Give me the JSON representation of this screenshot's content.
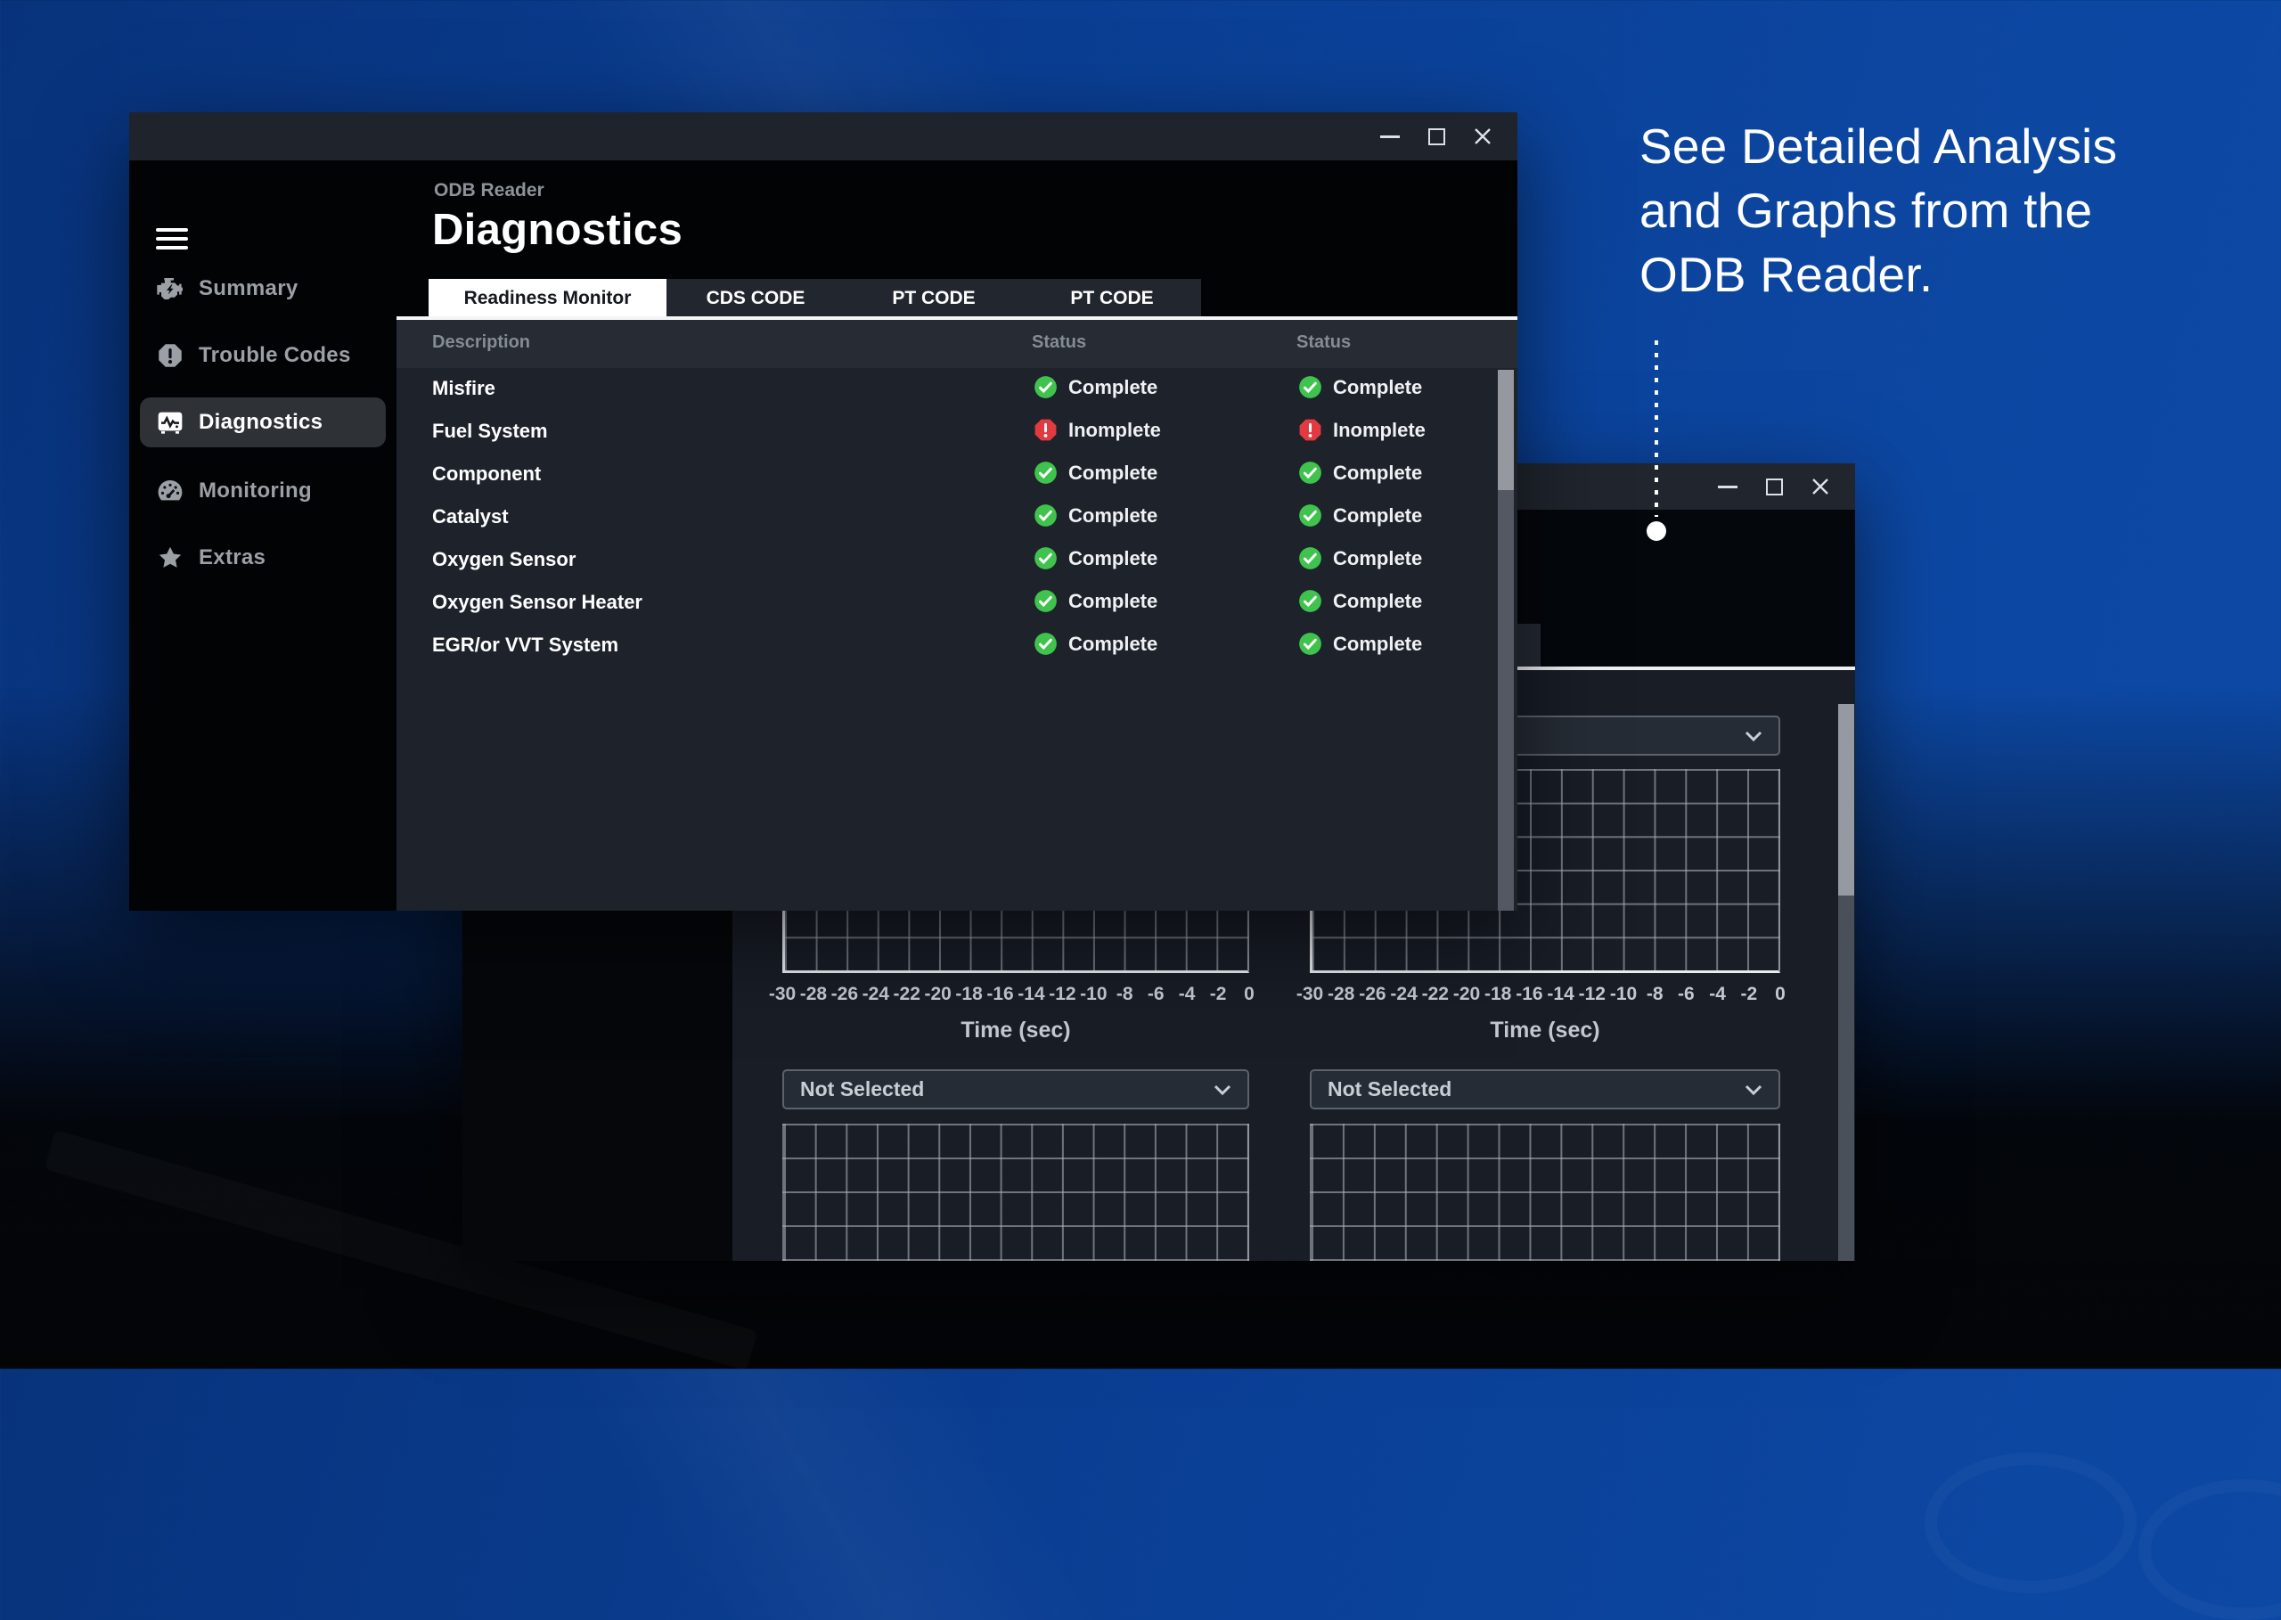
{
  "caption": {
    "text": "See Detailed Analysis\nand Graphs from the\nODB Reader."
  },
  "main_window": {
    "subtitle": "ODB Reader",
    "title": "Diagnostics",
    "window_controls": [
      "minimize",
      "maximize",
      "close"
    ],
    "sidebar": {
      "items": [
        {
          "label": "Summary",
          "icon": "engine-icon",
          "active": false
        },
        {
          "label": "Trouble Codes",
          "icon": "alert-octagon-icon",
          "active": false
        },
        {
          "label": "Diagnostics",
          "icon": "waveform-monitor-icon",
          "active": true
        },
        {
          "label": "Monitoring",
          "icon": "gauge-icon",
          "active": false
        },
        {
          "label": "Extras",
          "icon": "star-icon",
          "active": false
        }
      ]
    },
    "tabs": [
      {
        "label": "Readiness Monitor",
        "active": true
      },
      {
        "label": "CDS CODE",
        "active": false
      },
      {
        "label": "PT CODE",
        "active": false
      },
      {
        "label": "PT CODE",
        "active": false
      }
    ],
    "table": {
      "columns": [
        "Description",
        "Status",
        "Status"
      ],
      "rows": [
        {
          "description": "Misfire",
          "statuses": [
            {
              "label": "Complete",
              "state": "complete"
            },
            {
              "label": "Complete",
              "state": "complete"
            }
          ]
        },
        {
          "description": "Fuel System",
          "statuses": [
            {
              "label": "Inomplete",
              "state": "incomplete"
            },
            {
              "label": "Inomplete",
              "state": "incomplete"
            }
          ]
        },
        {
          "description": "Component",
          "statuses": [
            {
              "label": "Complete",
              "state": "complete"
            },
            {
              "label": "Complete",
              "state": "complete"
            }
          ]
        },
        {
          "description": "Catalyst",
          "statuses": [
            {
              "label": "Complete",
              "state": "complete"
            },
            {
              "label": "Complete",
              "state": "complete"
            }
          ]
        },
        {
          "description": "Oxygen Sensor",
          "statuses": [
            {
              "label": "Complete",
              "state": "complete"
            },
            {
              "label": "Complete",
              "state": "complete"
            }
          ]
        },
        {
          "description": "Oxygen Sensor Heater",
          "statuses": [
            {
              "label": "Complete",
              "state": "complete"
            },
            {
              "label": "Complete",
              "state": "complete"
            }
          ]
        },
        {
          "description": "EGR/or VVT System",
          "statuses": [
            {
              "label": "Complete",
              "state": "complete"
            },
            {
              "label": "Complete",
              "state": "complete"
            }
          ]
        }
      ]
    }
  },
  "charts_window": {
    "window_controls": [
      "minimize",
      "maximize",
      "close"
    ],
    "top_selector_value": "",
    "panels": [
      {
        "x_ticks": [
          "-30",
          "-28",
          "-26",
          "-24",
          "-22",
          "-20",
          "-18",
          "-16",
          "-14",
          "-12",
          "-10",
          "-8",
          "-6",
          "-4",
          "-2",
          "0"
        ],
        "x_label": "Time (sec)",
        "selector_value": "Not Selected"
      },
      {
        "x_ticks": [
          "-30",
          "-28",
          "-26",
          "-24",
          "-22",
          "-20",
          "-18",
          "-16",
          "-14",
          "-12",
          "-10",
          "-8",
          "-6",
          "-4",
          "-2",
          "0"
        ],
        "x_label": "Time (sec)",
        "selector_value": "Not Selected"
      }
    ],
    "chart_grid": {
      "x_range": [
        -30,
        0
      ],
      "x_step": 2,
      "rows": 6,
      "series": []
    }
  },
  "colors": {
    "status_ok": "#3fc34d",
    "status_error": "#e13b41",
    "background_blue": "#0a3e93",
    "window_dark": "#1d222b",
    "accent_white": "#ffffff"
  }
}
